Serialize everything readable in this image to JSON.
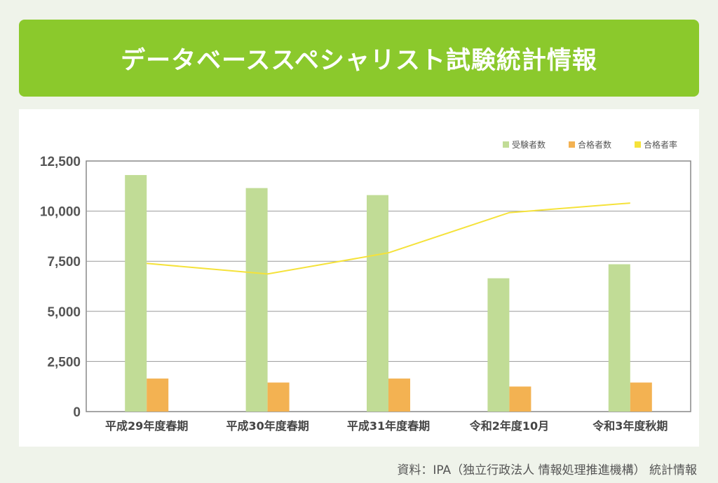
{
  "header": {
    "title": "データベーススペシャリスト試験統計情報"
  },
  "footer": {
    "source": "資料：IPA（独立行政法人 情報処理推進機構） 統計情報"
  },
  "colors": {
    "banner": "#8bc92c",
    "applicants": "#c1dc96",
    "passers": "#f3b252",
    "rate": "#f5e23a",
    "grid": "#999999"
  },
  "chart_data": {
    "type": "bar",
    "categories": [
      "平成29年度春期",
      "平成30年度春期",
      "平成31年度春期",
      "令和2年度10月",
      "令和3年度秋期"
    ],
    "series": [
      {
        "name": "受験者数",
        "type": "bar",
        "values": [
          11800,
          11150,
          10800,
          6650,
          7350
        ]
      },
      {
        "name": "合格者数",
        "type": "bar",
        "values": [
          1650,
          1450,
          1650,
          1250,
          1450
        ]
      },
      {
        "name": "合格者率",
        "type": "line",
        "values": [
          0.14,
          0.13,
          0.15,
          0.188,
          0.197
        ]
      }
    ],
    "yticks": [
      "0",
      "2,500",
      "5,000",
      "7,500",
      "10,000",
      "12,500"
    ],
    "ylim": [
      0,
      12500
    ],
    "legend_position": "top-right",
    "grid": true
  }
}
